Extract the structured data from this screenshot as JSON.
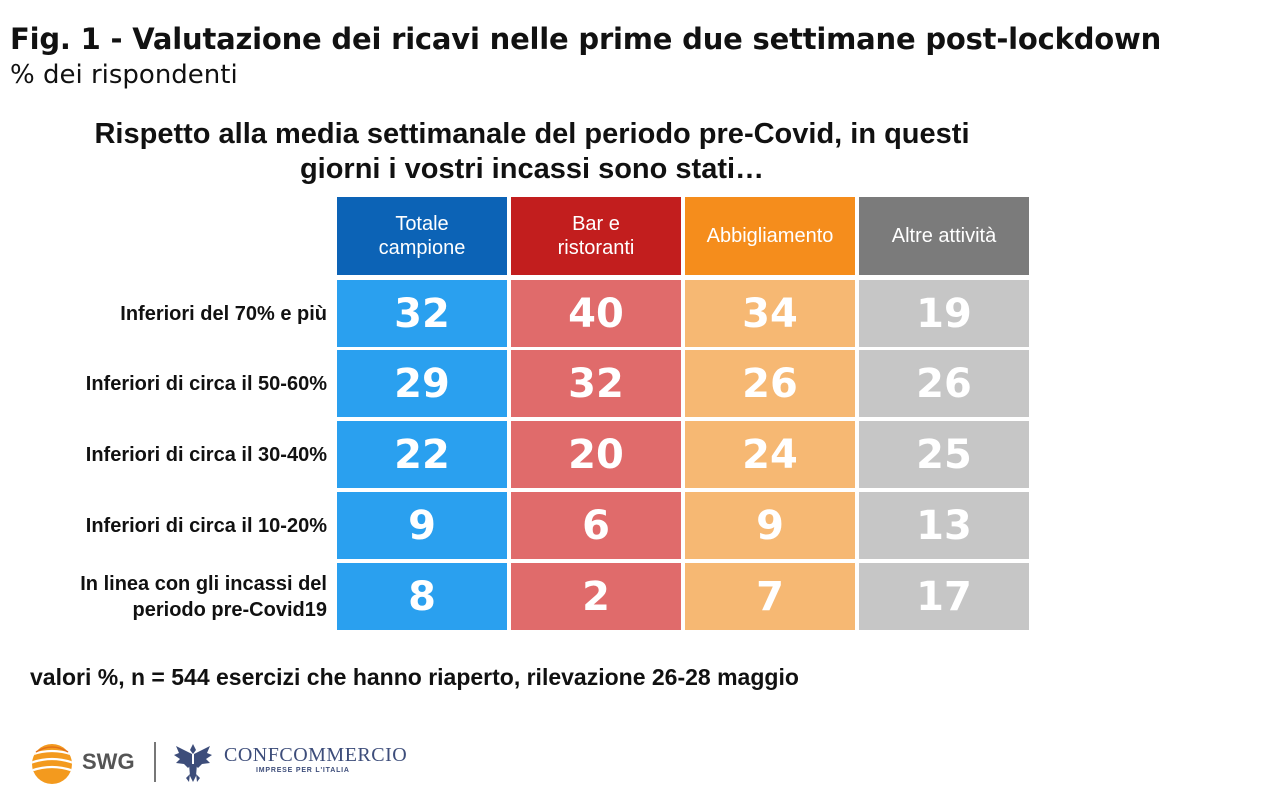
{
  "title": "Fig. 1 - Valutazione dei ricavi nelle prime due settimane post-lockdown",
  "subtitle": "% dei rispondenti",
  "question_lines": [
    "Rispetto alla media settimanale del periodo pre-Covid, in questi",
    "giorni i vostri incassi sono stati…"
  ],
  "footnote": "valori %, n = 544 esercizi che hanno riaperto, rilevazione 26-28 maggio",
  "logos": {
    "swg": "SWG",
    "confcommercio": "CONFCOMMERCIO",
    "confcommercio_tagline": "IMPRESE PER L'ITALIA"
  },
  "colors": {
    "header": [
      "#0c63b6",
      "#c21e1e",
      "#f58d1c",
      "#7b7b7b"
    ],
    "cell": [
      "#2aa0ef",
      "#e06b6b",
      "#f6b873",
      "#c6c6c6"
    ],
    "grid_line": "#ffffff"
  },
  "chart_data": {
    "type": "table",
    "title": "Fig. 1 - Valutazione dei ricavi nelle prime due settimane post-lockdown",
    "subtitle": "% dei rispondenti",
    "columns": [
      [
        "Totale",
        "campione"
      ],
      [
        "Bar e",
        "ristoranti"
      ],
      [
        "Abbigliamento"
      ],
      [
        "Altre attività"
      ]
    ],
    "rows": [
      {
        "label": [
          "Inferiori del 70% e più"
        ],
        "values": [
          32,
          40,
          34,
          19
        ]
      },
      {
        "label": [
          "Inferiori di circa il 50-60%"
        ],
        "values": [
          29,
          32,
          26,
          26
        ]
      },
      {
        "label": [
          "Inferiori di circa il 30-40%"
        ],
        "values": [
          22,
          20,
          24,
          25
        ]
      },
      {
        "label": [
          "Inferiori di circa il 10-20%"
        ],
        "values": [
          9,
          6,
          9,
          13
        ]
      },
      {
        "label": [
          "In linea con gli incassi del",
          "periodo pre-Covid19"
        ],
        "values": [
          8,
          2,
          7,
          17
        ]
      }
    ],
    "unit": "%"
  }
}
